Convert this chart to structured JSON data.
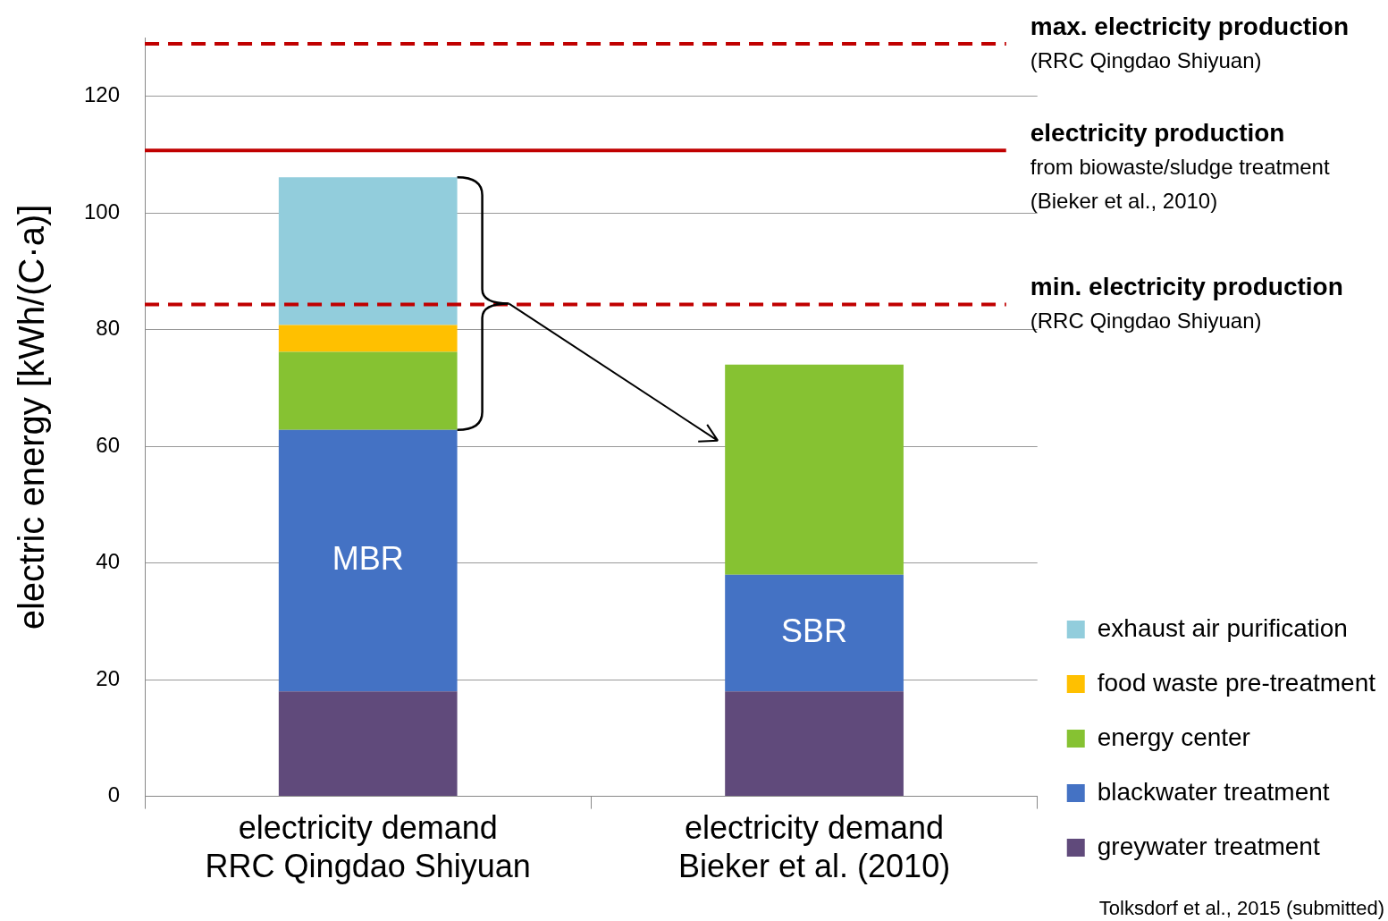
{
  "chart_data": {
    "type": "bar",
    "ylabel": "electric energy [kWh/(C·a)]",
    "categories": [
      "electricity demand\nRRC Qingdao Shiyuan",
      "electricity demand\nBieker et al. (2010)"
    ],
    "stacked": true,
    "series": [
      {
        "name": "greywater treatment",
        "color": "#604a7b",
        "values": [
          18,
          18
        ]
      },
      {
        "name": "blackwater treatment",
        "color": "#4472c4",
        "values": [
          44.8,
          20
        ]
      },
      {
        "name": "energy center",
        "color": "#86c232",
        "values": [
          13.4,
          36
        ]
      },
      {
        "name": "food waste pre-treatment",
        "color": "#ffc000",
        "values": [
          4.6,
          null
        ]
      },
      {
        "name": "exhaust air purification",
        "color": "#92cddc",
        "values": [
          25.3,
          null
        ]
      }
    ],
    "ylim": [
      0,
      130
    ],
    "yticks": [
      0,
      20,
      40,
      60,
      80,
      100,
      120
    ],
    "grid": "y",
    "legend": "bottom right",
    "ref_lines": [
      {
        "axis": "y",
        "value": 129,
        "label": "max. electricity production\n(RRC Qingdao Shiyuan)",
        "color": "#c00000",
        "line_style": "dashed"
      },
      {
        "axis": "y",
        "value": 110.7,
        "label": "electricity production\nfrom biowaste/sludge treatment\n(Bieker et al., 2010)",
        "color": "#c00000",
        "line_style": "solid"
      },
      {
        "axis": "y",
        "value": 84.3,
        "label": "min. electricity production\n(RRC Qingdao Shiyuan)",
        "color": "#c00000",
        "line_style": "dashed"
      }
    ],
    "annotations": [
      "MBR",
      "SBR",
      "Tolksdorf et al., 2015 (submitted)"
    ]
  }
}
